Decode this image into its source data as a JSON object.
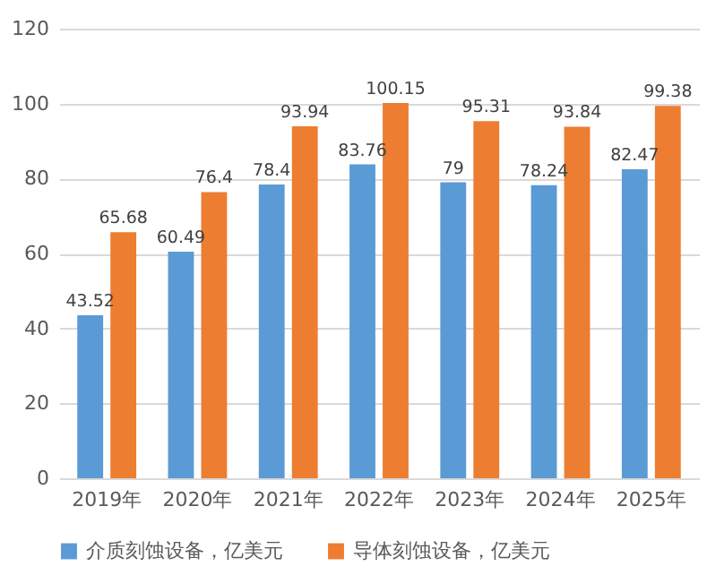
{
  "chart_data": {
    "type": "bar",
    "categories": [
      "2019年",
      "2020年",
      "2021年",
      "2022年",
      "2023年",
      "2024年",
      "2025年"
    ],
    "series": [
      {
        "name": "介质刻蚀设备，亿美元",
        "color": "#5b9bd5",
        "values": [
          43.52,
          60.49,
          78.4,
          83.76,
          79,
          78.24,
          82.47
        ]
      },
      {
        "name": "导体刻蚀设备，亿美元",
        "color": "#ed7d31",
        "values": [
          65.68,
          76.4,
          93.94,
          100.15,
          95.31,
          93.84,
          99.38
        ]
      }
    ],
    "ylim": [
      0,
      120
    ],
    "yticks": [
      0,
      20,
      40,
      60,
      80,
      100,
      120
    ],
    "grid": "y",
    "legend": "bottom",
    "data_labels": true
  }
}
